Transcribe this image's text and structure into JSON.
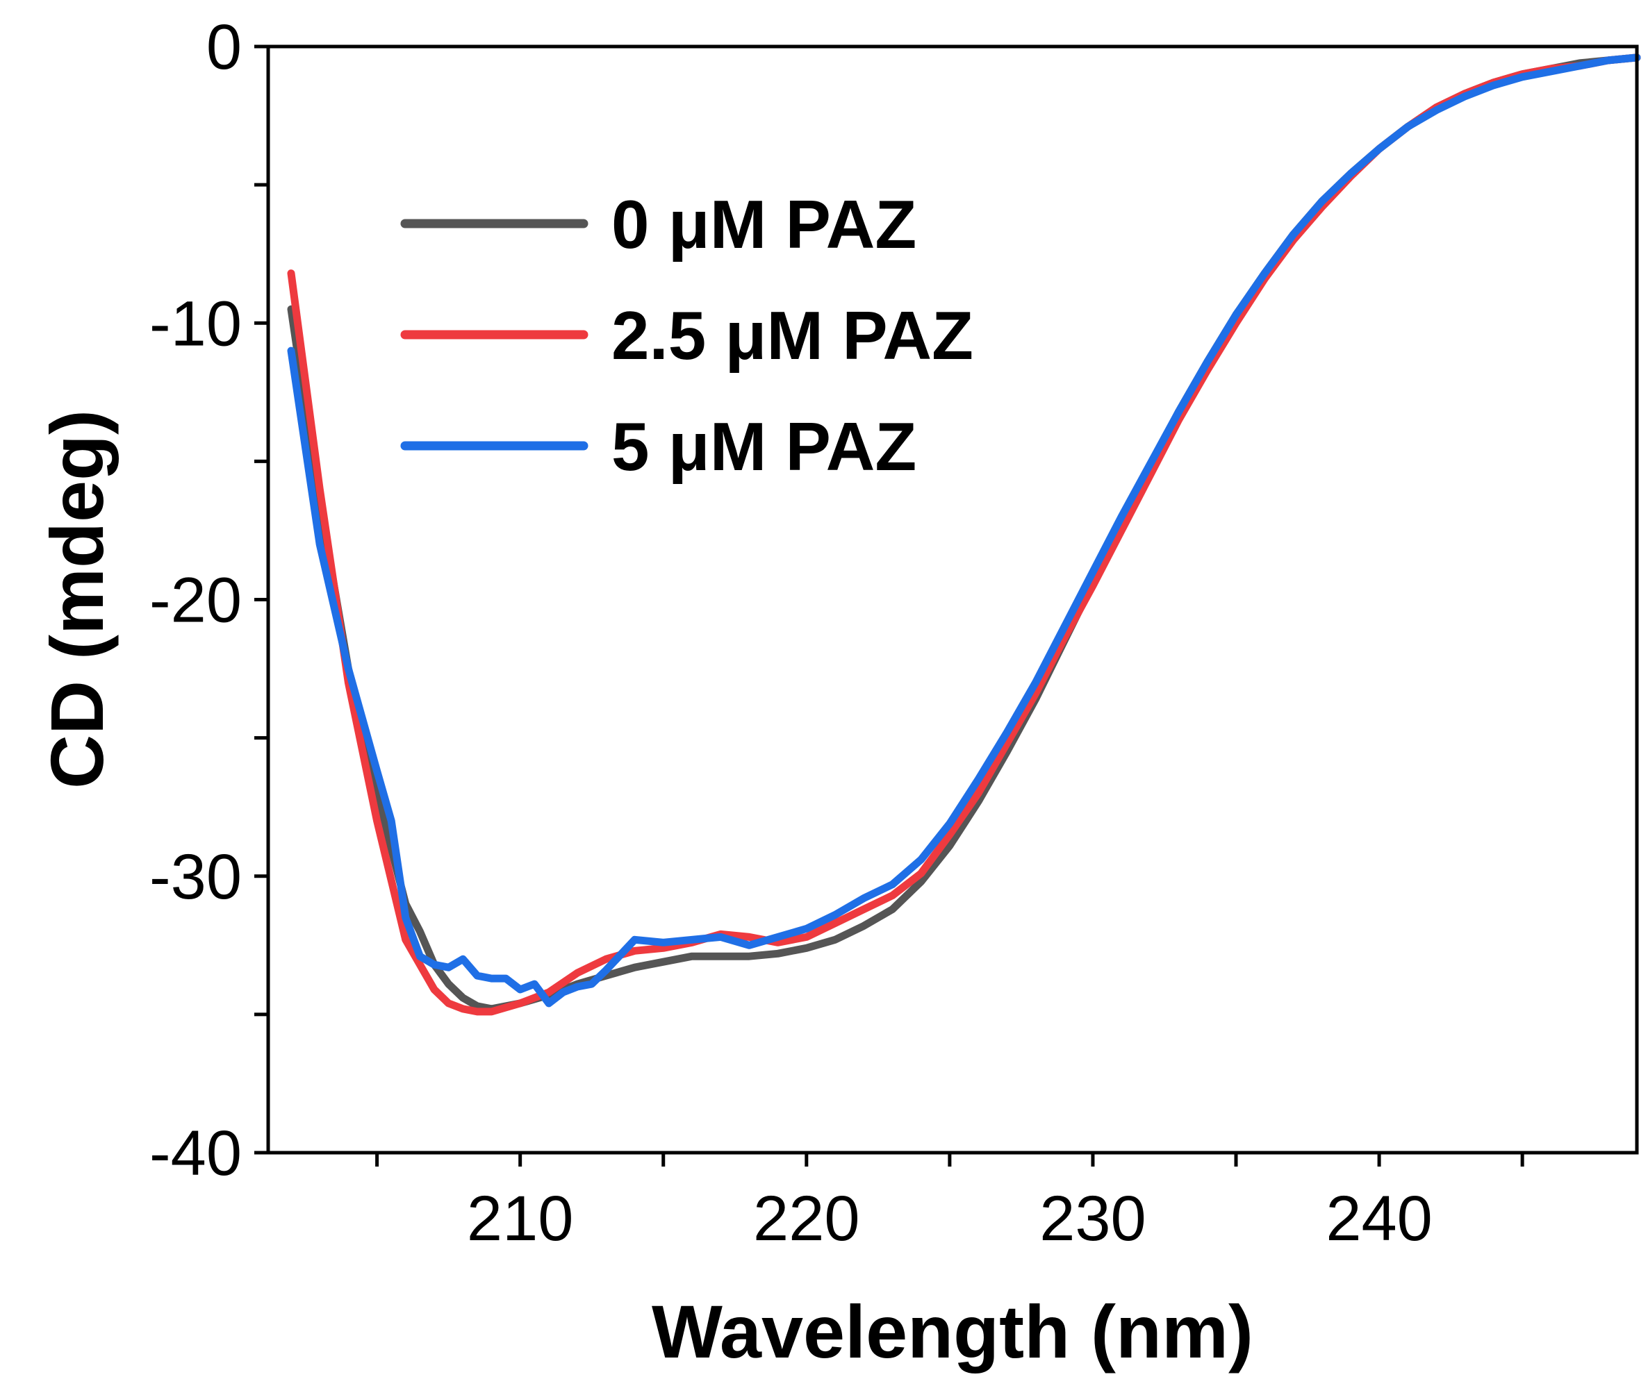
{
  "chart_data": {
    "type": "line",
    "title": "",
    "xlabel": "Wavelength (nm)",
    "ylabel": "CD (mdeg)",
    "xlim": [
      201.2,
      249
    ],
    "ylim": [
      -40,
      0
    ],
    "x_ticks": [
      210,
      220,
      230,
      240
    ],
    "x_tick_labels": [
      "210",
      "220",
      "230",
      "240"
    ],
    "x_minor_ticks": [
      205,
      215,
      225,
      235,
      245
    ],
    "y_ticks": [
      0,
      -10,
      -20,
      -30,
      -40
    ],
    "y_tick_labels": [
      "0",
      "-10",
      "-20",
      "-30",
      "-40"
    ],
    "y_minor_ticks": [
      -5,
      -15,
      -25,
      -35
    ],
    "grid": false,
    "legend_position": "top-left",
    "series": [
      {
        "name": "0 μM PAZ",
        "legend_label": "0 μM PAZ",
        "color": "#555555",
        "x": [
          202,
          203,
          204,
          205,
          206,
          206.5,
          207,
          207.5,
          208,
          208.5,
          209,
          210,
          211,
          212,
          213,
          214,
          215,
          216,
          217,
          218,
          219,
          220,
          221,
          222,
          223,
          224,
          225,
          226,
          227,
          228,
          229,
          230,
          231,
          232,
          233,
          234,
          235,
          236,
          237,
          238,
          239,
          240,
          241,
          242,
          243,
          244,
          245,
          246,
          247,
          248,
          249
        ],
        "y": [
          -9.5,
          -16.5,
          -22.5,
          -27.0,
          -31.0,
          -32.0,
          -33.2,
          -33.9,
          -34.4,
          -34.7,
          -34.8,
          -34.6,
          -34.3,
          -33.9,
          -33.6,
          -33.3,
          -33.1,
          -32.9,
          -32.9,
          -32.9,
          -32.8,
          -32.6,
          -32.3,
          -31.8,
          -31.2,
          -30.2,
          -28.9,
          -27.3,
          -25.5,
          -23.6,
          -21.5,
          -19.4,
          -17.3,
          -15.2,
          -13.2,
          -11.4,
          -9.7,
          -8.2,
          -6.8,
          -5.6,
          -4.6,
          -3.7,
          -2.9,
          -2.2,
          -1.7,
          -1.3,
          -1.0,
          -0.8,
          -0.6,
          -0.5,
          -0.4
        ]
      },
      {
        "name": "2.5 μM PAZ",
        "legend_label": "2.5 μM PAZ",
        "color": "#ee3a3f",
        "x": [
          202,
          203,
          204,
          205,
          206,
          206.5,
          207,
          207.5,
          208,
          208.5,
          209,
          210,
          211,
          212,
          213,
          214,
          215,
          216,
          217,
          218,
          219,
          220,
          221,
          222,
          223,
          224,
          225,
          226,
          227,
          228,
          229,
          230,
          231,
          232,
          233,
          234,
          235,
          236,
          237,
          238,
          239,
          240,
          241,
          242,
          243,
          244,
          245,
          246,
          247,
          248,
          249
        ],
        "y": [
          -8.2,
          -16.0,
          -23.0,
          -28.0,
          -32.3,
          -33.2,
          -34.1,
          -34.6,
          -34.8,
          -34.9,
          -34.9,
          -34.6,
          -34.2,
          -33.5,
          -33.0,
          -32.7,
          -32.6,
          -32.4,
          -32.1,
          -32.2,
          -32.4,
          -32.2,
          -31.7,
          -31.2,
          -30.7,
          -29.9,
          -28.5,
          -27.0,
          -25.2,
          -23.4,
          -21.4,
          -19.5,
          -17.5,
          -15.5,
          -13.5,
          -11.7,
          -10.0,
          -8.4,
          -7.0,
          -5.8,
          -4.7,
          -3.7,
          -2.9,
          -2.2,
          -1.7,
          -1.3,
          -1.0,
          -0.8,
          -0.7,
          -0.5,
          -0.4
        ]
      },
      {
        "name": "5 μM PAZ",
        "legend_label": "5 μM PAZ",
        "color": "#1f6fe6",
        "x": [
          202,
          203,
          204,
          205,
          205.5,
          206,
          206.5,
          207,
          207.5,
          208,
          208.5,
          209,
          209.5,
          210,
          210.5,
          211,
          211.5,
          212,
          212.5,
          213,
          214,
          215,
          216,
          217,
          218,
          219,
          220,
          221,
          222,
          223,
          224,
          225,
          226,
          227,
          228,
          229,
          230,
          231,
          232,
          233,
          234,
          235,
          236,
          237,
          238,
          239,
          240,
          241,
          242,
          243,
          244,
          245,
          246,
          247,
          248,
          249
        ],
        "y": [
          -11.0,
          -18.0,
          -22.5,
          -26.2,
          -28.0,
          -31.5,
          -32.9,
          -33.2,
          -33.3,
          -33.0,
          -33.6,
          -33.7,
          -33.7,
          -34.1,
          -33.9,
          -34.6,
          -34.2,
          -34.0,
          -33.9,
          -33.4,
          -32.3,
          -32.4,
          -32.3,
          -32.2,
          -32.5,
          -32.2,
          -31.9,
          -31.4,
          -30.8,
          -30.3,
          -29.4,
          -28.1,
          -26.5,
          -24.8,
          -23.0,
          -21.0,
          -19.0,
          -17.0,
          -15.1,
          -13.2,
          -11.4,
          -9.7,
          -8.2,
          -6.8,
          -5.6,
          -4.6,
          -3.7,
          -2.9,
          -2.3,
          -1.8,
          -1.4,
          -1.1,
          -0.9,
          -0.7,
          -0.5,
          -0.4
        ]
      }
    ]
  }
}
